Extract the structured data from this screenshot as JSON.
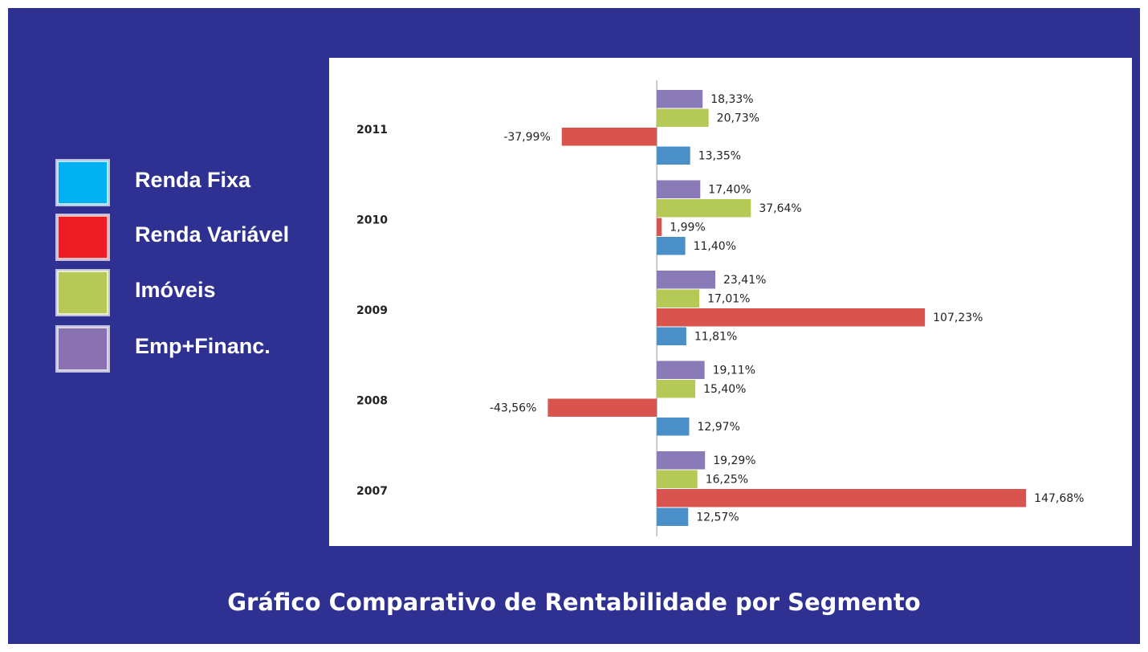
{
  "chart_data": {
    "type": "barh",
    "title": "Gráfico Comparativo de Rentabilidade por Segmento",
    "categories": [
      "2011",
      "2010",
      "2009",
      "2008",
      "2007"
    ],
    "xlim": [
      -131,
      190
    ],
    "series": [
      {
        "name": "Renda Fixa",
        "color": "#4a8fc7",
        "legend_color": "#00b0f0",
        "values": [
          13.35,
          11.4,
          11.81,
          12.97,
          12.57
        ],
        "value_labels": [
          "13,35%",
          "11,40%",
          "11,81%",
          "12,97%",
          "12,57%"
        ]
      },
      {
        "name": "Renda Variável",
        "color": "#d9534f",
        "legend_color": "#ee1c24",
        "values": [
          -37.99,
          1.99,
          107.23,
          -43.56,
          147.68
        ],
        "value_labels": [
          "-37,99%",
          "1,99%",
          "107,23%",
          "-43,56%",
          "147,68%"
        ]
      },
      {
        "name": "Imóveis",
        "color": "#b5c957",
        "legend_color": "#b6c957",
        "values": [
          20.73,
          37.64,
          17.01,
          15.4,
          16.25
        ],
        "value_labels": [
          "20,73%",
          "37,64%",
          "17,01%",
          "15,40%",
          "16,25%"
        ]
      },
      {
        "name": "Emp+Financ.",
        "color": "#8a7ab8",
        "legend_color": "#8a72b0",
        "values": [
          18.33,
          17.4,
          23.41,
          19.11,
          19.29
        ],
        "value_labels": [
          "18,33%",
          "17,40%",
          "23,41%",
          "19,11%",
          "19,29%"
        ]
      }
    ]
  }
}
